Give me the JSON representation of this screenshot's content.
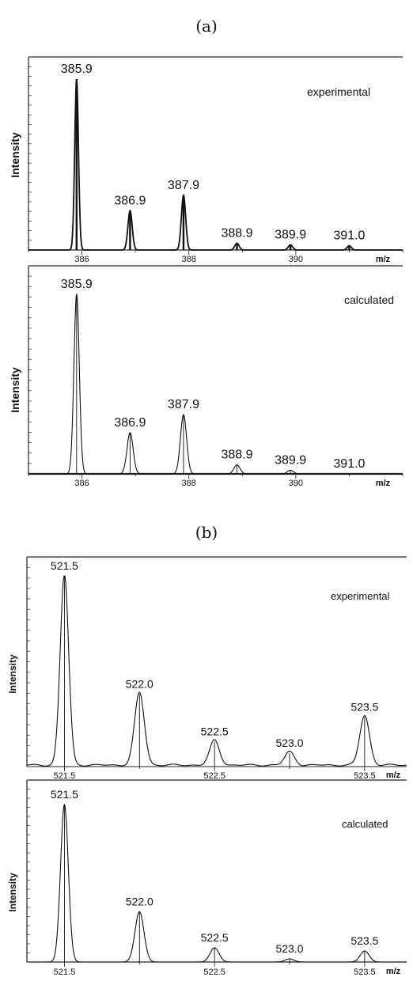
{
  "panels": [
    {
      "label": "(a)"
    },
    {
      "label": "(b)"
    }
  ],
  "chart_data": [
    {
      "type": "line",
      "panel": "(a)",
      "annotation": "experimental",
      "ylabel": "Intensity",
      "xlabel": "m/z",
      "xlim": [
        385.0,
        392.0
      ],
      "ylim": [
        0,
        100
      ],
      "xticks": [
        386,
        388,
        390
      ],
      "xtick_labels": [
        "386",
        "388",
        "390"
      ],
      "peaks": [
        {
          "x": 385.9,
          "y": 100,
          "label": "385.9"
        },
        {
          "x": 386.9,
          "y": 23,
          "label": "386.9"
        },
        {
          "x": 387.9,
          "y": 32,
          "label": "387.9"
        },
        {
          "x": 388.9,
          "y": 4,
          "label": "388.9"
        },
        {
          "x": 389.9,
          "y": 3,
          "label": "389.9"
        },
        {
          "x": 391.0,
          "y": 2.5,
          "label": "391.0"
        }
      ]
    },
    {
      "type": "line",
      "panel": "(a)",
      "annotation": "calculated",
      "ylabel": "Intensity",
      "xlabel": "m/z",
      "xlim": [
        385.0,
        392.0
      ],
      "ylim": [
        0,
        100
      ],
      "xticks": [
        386,
        388,
        390
      ],
      "xtick_labels": [
        "386",
        "388",
        "390"
      ],
      "peaks": [
        {
          "x": 385.9,
          "y": 100,
          "label": "385.9"
        },
        {
          "x": 386.9,
          "y": 23,
          "label": "386.9"
        },
        {
          "x": 387.9,
          "y": 33,
          "label": "387.9"
        },
        {
          "x": 388.9,
          "y": 5,
          "label": "388.9"
        },
        {
          "x": 389.9,
          "y": 2,
          "label": "389.9"
        },
        {
          "x": 391.0,
          "y": 0,
          "label": "391.0"
        }
      ]
    },
    {
      "type": "line",
      "panel": "(b)",
      "annotation": "experimental",
      "ylabel": "Intensity",
      "xlabel": "m/z",
      "xlim": [
        521.25,
        523.78
      ],
      "ylim": [
        0,
        100
      ],
      "xticks": [
        521.5,
        522.5,
        523.5
      ],
      "xtick_labels": [
        "521.5",
        "522.5",
        "523.5"
      ],
      "peaks": [
        {
          "x": 521.5,
          "y": 100,
          "label": "521.5"
        },
        {
          "x": 522.0,
          "y": 38,
          "label": "522.0"
        },
        {
          "x": 522.5,
          "y": 13,
          "label": "522.5"
        },
        {
          "x": 523.0,
          "y": 7,
          "label": "523.0"
        },
        {
          "x": 523.5,
          "y": 26,
          "label": "523.5"
        }
      ]
    },
    {
      "type": "line",
      "panel": "(b)",
      "annotation": "calculated",
      "ylabel": "Intensity",
      "xlabel": "m/z",
      "xlim": [
        521.25,
        523.78
      ],
      "ylim": [
        0,
        100
      ],
      "xticks": [
        521.5,
        522.5,
        523.5
      ],
      "xtick_labels": [
        "521.5",
        "522.5",
        "523.5"
      ],
      "peaks": [
        {
          "x": 521.5,
          "y": 100,
          "label": "521.5"
        },
        {
          "x": 522.0,
          "y": 32,
          "label": "522.0"
        },
        {
          "x": 522.5,
          "y": 9,
          "label": "522.5"
        },
        {
          "x": 523.0,
          "y": 2,
          "label": "523.0"
        },
        {
          "x": 523.5,
          "y": 7,
          "label": "523.5"
        }
      ]
    }
  ]
}
